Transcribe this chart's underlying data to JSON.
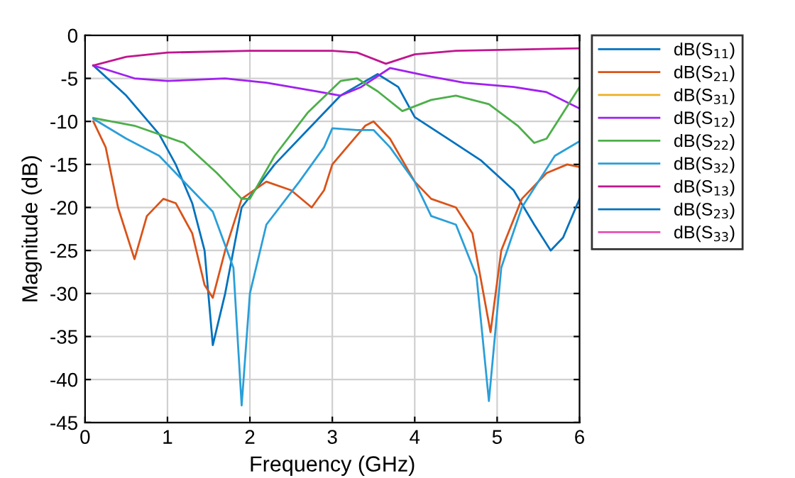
{
  "chart_data": {
    "type": "line",
    "xlabel": "Frequency (GHz)",
    "ylabel": "Magnitude (dB)",
    "xlim": [
      0,
      6
    ],
    "xticks": [
      0,
      1,
      2,
      3,
      4,
      5,
      6
    ],
    "ylim": [
      -45,
      0
    ],
    "yticks": [
      -45,
      -40,
      -35,
      -30,
      -25,
      -20,
      -15,
      -10,
      -5,
      0
    ],
    "grid": true,
    "legend": "top right",
    "line_style": "solid",
    "marker": "none",
    "series": [
      {
        "name": "dB(S$_{11}$)",
        "color": "#0072bd",
        "x": [
          0.1,
          0.5,
          0.9,
          1.1,
          1.3,
          1.45,
          1.55,
          1.7,
          1.9,
          2.3,
          2.7,
          3.1,
          3.55,
          3.8,
          4.0,
          4.4,
          4.8,
          5.2,
          5.45,
          5.65,
          5.8,
          6.0
        ],
        "values": [
          -3.5,
          -7,
          -11.5,
          -15,
          -19.5,
          -25,
          -36,
          -30,
          -20,
          -15,
          -11,
          -7,
          -4.5,
          -6,
          -9.5,
          -12,
          -14.5,
          -18,
          -22,
          -25,
          -23.5,
          -19
        ]
      },
      {
        "name": "dB(S$_{21}$)",
        "color": "#d95319",
        "x": [
          0.1,
          0.25,
          0.4,
          0.6,
          0.75,
          0.95,
          1.1,
          1.3,
          1.45,
          1.55,
          1.7,
          1.9,
          2.2,
          2.5,
          2.75,
          2.9,
          3.0,
          3.4,
          3.5,
          3.7,
          4.0,
          4.2,
          4.5,
          4.7,
          4.92,
          5.05,
          5.3,
          5.6,
          5.85,
          6.0
        ],
        "values": [
          -10,
          -13,
          -20,
          -26,
          -21,
          -19,
          -19.5,
          -23,
          -29,
          -30.5,
          -25,
          -19,
          -17,
          -18,
          -20,
          -18,
          -15,
          -10.5,
          -10,
          -12,
          -17,
          -19,
          -20,
          -23,
          -34.5,
          -25,
          -19,
          -16,
          -15,
          -15.3
        ]
      },
      {
        "name": "dB(S$_{31}$)",
        "color": "#edb120"
      },
      {
        "name": "dB(S$_{12}$)",
        "color": "#a020f0",
        "x": [
          0.1,
          0.6,
          1.0,
          1.7,
          2.2,
          2.8,
          3.1,
          3.35,
          3.7,
          4.2,
          4.6,
          5.2,
          5.6,
          6.0
        ],
        "values": [
          -3.5,
          -5,
          -5.3,
          -5,
          -5.5,
          -6.5,
          -7,
          -6,
          -3.8,
          -4.8,
          -5.5,
          -6,
          -6.6,
          -8.5
        ]
      },
      {
        "name": "dB(S$_{22}$)",
        "color": "#4daf4a",
        "x": [
          0.1,
          0.6,
          1.2,
          1.6,
          1.9,
          2.0,
          2.3,
          2.7,
          3.1,
          3.3,
          3.55,
          3.85,
          4.2,
          4.5,
          4.9,
          5.25,
          5.45,
          5.6,
          6.0
        ],
        "values": [
          -9.6,
          -10.5,
          -12.5,
          -16,
          -19,
          -19,
          -14,
          -9,
          -5.3,
          -5,
          -6.5,
          -8.8,
          -7.5,
          -7,
          -8,
          -10.5,
          -12.5,
          -12,
          -6
        ]
      },
      {
        "name": "dB(S$_{32}$)",
        "color": "#2a9fd8",
        "x": [
          0.1,
          0.5,
          0.9,
          1.3,
          1.55,
          1.8,
          1.9,
          2.0,
          2.2,
          2.6,
          2.9,
          3.0,
          3.3,
          3.5,
          3.7,
          4.0,
          4.2,
          4.5,
          4.75,
          4.9,
          5.05,
          5.3,
          5.7,
          6.0
        ],
        "values": [
          -9.7,
          -12,
          -14,
          -18,
          -20.5,
          -27,
          -43,
          -30,
          -22,
          -17,
          -13,
          -10.8,
          -11,
          -11,
          -13,
          -17,
          -21,
          -22,
          -28,
          -42.5,
          -27,
          -20,
          -14,
          -12.3
        ]
      },
      {
        "name": "dB(S$_{13}$)",
        "color": "#c0168f",
        "x": [
          0.1,
          0.5,
          1.0,
          2.0,
          3.0,
          3.3,
          3.65,
          4.0,
          4.5,
          6.0
        ],
        "values": [
          -3.5,
          -2.5,
          -2,
          -1.8,
          -1.8,
          -2,
          -3.3,
          -2.2,
          -1.8,
          -1.5
        ]
      },
      {
        "name": "dB(S$_{23}$)",
        "color": "#0072bd"
      },
      {
        "name": "dB(S$_{33}$)",
        "color": "#e64fb0"
      }
    ]
  }
}
